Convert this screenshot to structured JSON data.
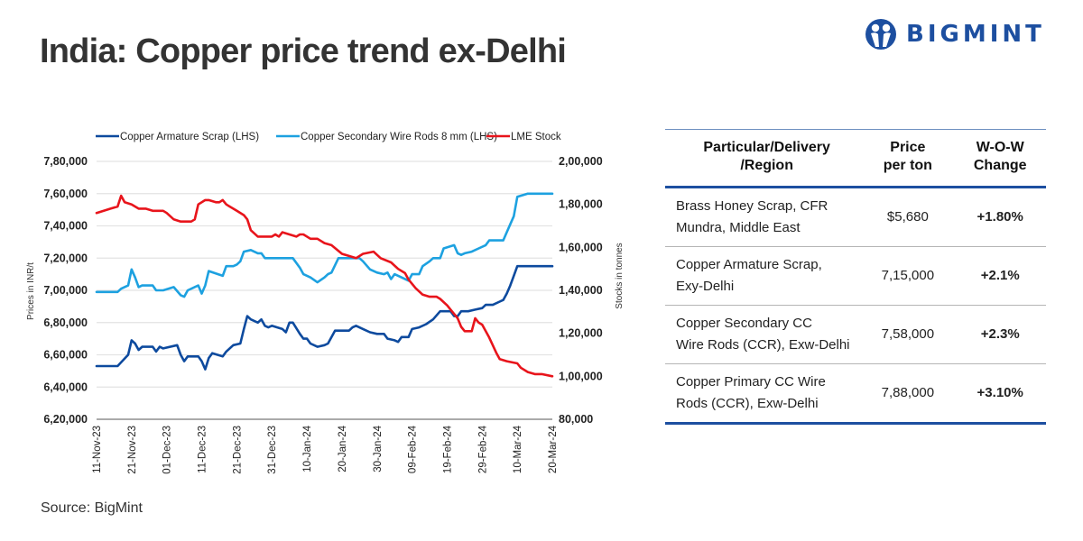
{
  "header": {
    "title": "India: Copper price trend ex-Delhi",
    "brand": "BIGMINT",
    "brand_color": "#1d4fa0"
  },
  "source": "Source: BigMint",
  "table": {
    "headers": [
      "Particular/Delivery /Region",
      "Price per ton",
      "W-O-W Change"
    ],
    "header_lines": [
      [
        "Particular/Delivery",
        "/Region"
      ],
      [
        "Price",
        "per ton"
      ],
      [
        "W-O-W",
        "Change"
      ]
    ],
    "rows": [
      {
        "lines": [
          "Brass Honey Scrap, CFR",
          "Mundra, Middle East"
        ],
        "price": "$5,680",
        "change": "+1.80%"
      },
      {
        "lines": [
          "Copper Armature Scrap,",
          "Exy-Delhi"
        ],
        "price": "7,15,000",
        "change": "+2.1%"
      },
      {
        "lines": [
          "Copper Secondary CC",
          "Wire Rods (CCR), Exw-Delhi"
        ],
        "price": "7,58,000",
        "change": "+2.3%"
      },
      {
        "lines": [
          "Copper Primary CC Wire",
          "Rods (CCR), Exw-Delhi"
        ],
        "price": "7,88,000",
        "change": "+3.10%"
      }
    ],
    "positive_color": "#2e9e48",
    "accent_color": "#1d4fa0"
  },
  "chart_data": {
    "type": "line",
    "title": "",
    "xlabel": "",
    "ylabel": "Prices in INR/t",
    "y2label": "Stocks in tonnes",
    "x_tick_labels": [
      "11-Nov-23",
      "21-Nov-23",
      "01-Dec-23",
      "11-Dec-23",
      "21-Dec-23",
      "31-Dec-23",
      "10-Jan-24",
      "20-Jan-24",
      "30-Jan-24",
      "09-Feb-24",
      "19-Feb-24",
      "29-Feb-24",
      "10-Mar-24",
      "20-Mar-24"
    ],
    "x_range_days": [
      0,
      130
    ],
    "ylim": [
      620000,
      780000
    ],
    "y_ticks": [
      620000,
      640000,
      660000,
      680000,
      700000,
      720000,
      740000,
      760000,
      780000
    ],
    "y_tick_labels": [
      "6,20,000",
      "6,40,000",
      "6,60,000",
      "6,80,000",
      "7,00,000",
      "7,20,000",
      "7,40,000",
      "7,60,000",
      "7,80,000"
    ],
    "y2lim": [
      80000,
      200000
    ],
    "y2_ticks": [
      80000,
      100000,
      120000,
      140000,
      160000,
      180000,
      200000
    ],
    "y2_tick_labels": [
      "80,000",
      "1,00,000",
      "1,20,000",
      "1,40,000",
      "1,60,000",
      "1,80,000",
      "2,00,000"
    ],
    "grid": true,
    "legend_position": "top",
    "series": [
      {
        "name": "Copper Armature Scrap (LHS)",
        "axis": "left",
        "color": "#0d4a9e",
        "points": [
          [
            0,
            653000
          ],
          [
            4,
            653000
          ],
          [
            6,
            653000
          ],
          [
            9,
            660000
          ],
          [
            10,
            669000
          ],
          [
            11,
            667000
          ],
          [
            12,
            663000
          ],
          [
            13,
            665000
          ],
          [
            16,
            665000
          ],
          [
            17,
            662000
          ],
          [
            18,
            665000
          ],
          [
            19,
            664000
          ],
          [
            23,
            666000
          ],
          [
            24,
            660000
          ],
          [
            25,
            656000
          ],
          [
            26,
            659000
          ],
          [
            29,
            659000
          ],
          [
            30,
            656000
          ],
          [
            31,
            651000
          ],
          [
            32,
            658000
          ],
          [
            33,
            661000
          ],
          [
            36,
            659000
          ],
          [
            37,
            662000
          ],
          [
            39,
            666000
          ],
          [
            41,
            667000
          ],
          [
            42,
            676000
          ],
          [
            43,
            684000
          ],
          [
            44,
            682000
          ],
          [
            46,
            680000
          ],
          [
            47,
            682000
          ],
          [
            48,
            678000
          ],
          [
            49,
            677000
          ],
          [
            50,
            678000
          ],
          [
            53,
            676000
          ],
          [
            54,
            674000
          ],
          [
            55,
            680000
          ],
          [
            56,
            680000
          ],
          [
            58,
            673000
          ],
          [
            59,
            670000
          ],
          [
            60,
            670000
          ],
          [
            61,
            667000
          ],
          [
            63,
            665000
          ],
          [
            65,
            666000
          ],
          [
            66,
            667000
          ],
          [
            68,
            675000
          ],
          [
            70,
            675000
          ],
          [
            72,
            675000
          ],
          [
            73,
            677000
          ],
          [
            74,
            678000
          ],
          [
            76,
            676000
          ],
          [
            78,
            674000
          ],
          [
            80,
            673000
          ],
          [
            82,
            673000
          ],
          [
            83,
            670000
          ],
          [
            85,
            669000
          ],
          [
            86,
            668000
          ],
          [
            87,
            671000
          ],
          [
            89,
            671000
          ],
          [
            90,
            676000
          ],
          [
            92,
            677000
          ],
          [
            94,
            679000
          ],
          [
            96,
            682000
          ],
          [
            98,
            687000
          ],
          [
            101,
            687000
          ],
          [
            102,
            684000
          ],
          [
            103,
            684000
          ],
          [
            104,
            687000
          ],
          [
            106,
            687000
          ],
          [
            108,
            688000
          ],
          [
            110,
            689000
          ],
          [
            111,
            691000
          ],
          [
            113,
            691000
          ],
          [
            115,
            693000
          ],
          [
            116,
            694000
          ],
          [
            117,
            698000
          ],
          [
            118,
            703000
          ],
          [
            119,
            709000
          ],
          [
            120,
            715000
          ],
          [
            126,
            715000
          ],
          [
            130,
            715000
          ]
        ]
      },
      {
        "name": "Copper Secondary Wire Rods 8 mm (LHS)",
        "axis": "left",
        "color": "#1da1e0",
        "points": [
          [
            0,
            699000
          ],
          [
            6,
            699000
          ],
          [
            7,
            701000
          ],
          [
            9,
            703000
          ],
          [
            10,
            713000
          ],
          [
            11,
            708000
          ],
          [
            12,
            702000
          ],
          [
            13,
            703000
          ],
          [
            16,
            703000
          ],
          [
            17,
            700000
          ],
          [
            19,
            700000
          ],
          [
            22,
            702000
          ],
          [
            24,
            697000
          ],
          [
            25,
            696000
          ],
          [
            26,
            700000
          ],
          [
            29,
            703000
          ],
          [
            30,
            698000
          ],
          [
            31,
            703000
          ],
          [
            32,
            712000
          ],
          [
            36,
            709000
          ],
          [
            37,
            715000
          ],
          [
            39,
            715000
          ],
          [
            40,
            716000
          ],
          [
            41,
            718000
          ],
          [
            42,
            724000
          ],
          [
            44,
            725000
          ],
          [
            46,
            723000
          ],
          [
            47,
            723000
          ],
          [
            48,
            720000
          ],
          [
            53,
            720000
          ],
          [
            56,
            720000
          ],
          [
            58,
            714000
          ],
          [
            59,
            710000
          ],
          [
            61,
            708000
          ],
          [
            63,
            705000
          ],
          [
            65,
            708000
          ],
          [
            66,
            710000
          ],
          [
            67,
            711000
          ],
          [
            69,
            720000
          ],
          [
            74,
            720000
          ],
          [
            75,
            720000
          ],
          [
            76,
            718000
          ],
          [
            78,
            713000
          ],
          [
            80,
            711000
          ],
          [
            82,
            710000
          ],
          [
            83,
            711000
          ],
          [
            84,
            707000
          ],
          [
            85,
            710000
          ],
          [
            87,
            708000
          ],
          [
            89,
            706000
          ],
          [
            90,
            710000
          ],
          [
            92,
            710000
          ],
          [
            93,
            715000
          ],
          [
            95,
            718000
          ],
          [
            96,
            720000
          ],
          [
            98,
            720000
          ],
          [
            99,
            726000
          ],
          [
            102,
            728000
          ],
          [
            103,
            723000
          ],
          [
            104,
            722000
          ],
          [
            105,
            723000
          ],
          [
            107,
            724000
          ],
          [
            109,
            726000
          ],
          [
            111,
            728000
          ],
          [
            112,
            731000
          ],
          [
            114,
            731000
          ],
          [
            116,
            731000
          ],
          [
            117,
            736000
          ],
          [
            119,
            746000
          ],
          [
            120,
            758000
          ],
          [
            123,
            760000
          ],
          [
            126,
            760000
          ],
          [
            130,
            760000
          ]
        ]
      },
      {
        "name": "LME Stock",
        "axis": "right",
        "color": "#e8141b",
        "points": [
          [
            0,
            176000
          ],
          [
            4,
            178000
          ],
          [
            6,
            179000
          ],
          [
            7,
            184000
          ],
          [
            8,
            181000
          ],
          [
            10,
            180000
          ],
          [
            12,
            178000
          ],
          [
            14,
            178000
          ],
          [
            16,
            177000
          ],
          [
            19,
            177000
          ],
          [
            20,
            176000
          ],
          [
            22,
            173000
          ],
          [
            24,
            172000
          ],
          [
            26,
            172000
          ],
          [
            27,
            172000
          ],
          [
            28,
            173000
          ],
          [
            29,
            180000
          ],
          [
            31,
            182000
          ],
          [
            32,
            182000
          ],
          [
            34,
            181000
          ],
          [
            35,
            181000
          ],
          [
            36,
            182000
          ],
          [
            37,
            180000
          ],
          [
            38,
            179000
          ],
          [
            40,
            177000
          ],
          [
            42,
            175000
          ],
          [
            43,
            173000
          ],
          [
            44,
            168000
          ],
          [
            46,
            165000
          ],
          [
            50,
            165000
          ],
          [
            51,
            166000
          ],
          [
            52,
            165000
          ],
          [
            53,
            167000
          ],
          [
            55,
            166000
          ],
          [
            57,
            165000
          ],
          [
            58,
            166000
          ],
          [
            59,
            166000
          ],
          [
            61,
            164000
          ],
          [
            63,
            164000
          ],
          [
            65,
            162000
          ],
          [
            67,
            161000
          ],
          [
            70,
            157000
          ],
          [
            72,
            156000
          ],
          [
            74,
            155000
          ],
          [
            76,
            157000
          ],
          [
            79,
            158000
          ],
          [
            81,
            155000
          ],
          [
            84,
            153000
          ],
          [
            86,
            150000
          ],
          [
            88,
            148000
          ],
          [
            89,
            145000
          ],
          [
            91,
            141000
          ],
          [
            93,
            138000
          ],
          [
            95,
            137000
          ],
          [
            97,
            137000
          ],
          [
            98,
            136000
          ],
          [
            100,
            133000
          ],
          [
            101,
            131000
          ],
          [
            102,
            129000
          ],
          [
            103,
            127000
          ],
          [
            104,
            123000
          ],
          [
            105,
            121000
          ],
          [
            106,
            121000
          ],
          [
            107,
            121000
          ],
          [
            108,
            127000
          ],
          [
            109,
            125000
          ],
          [
            110,
            124000
          ],
          [
            112,
            118000
          ],
          [
            114,
            111000
          ],
          [
            115,
            108000
          ],
          [
            117,
            107000
          ],
          [
            120,
            106000
          ],
          [
            121,
            104000
          ],
          [
            123,
            102000
          ],
          [
            125,
            101000
          ],
          [
            127,
            101000
          ],
          [
            130,
            100000
          ]
        ]
      }
    ]
  }
}
